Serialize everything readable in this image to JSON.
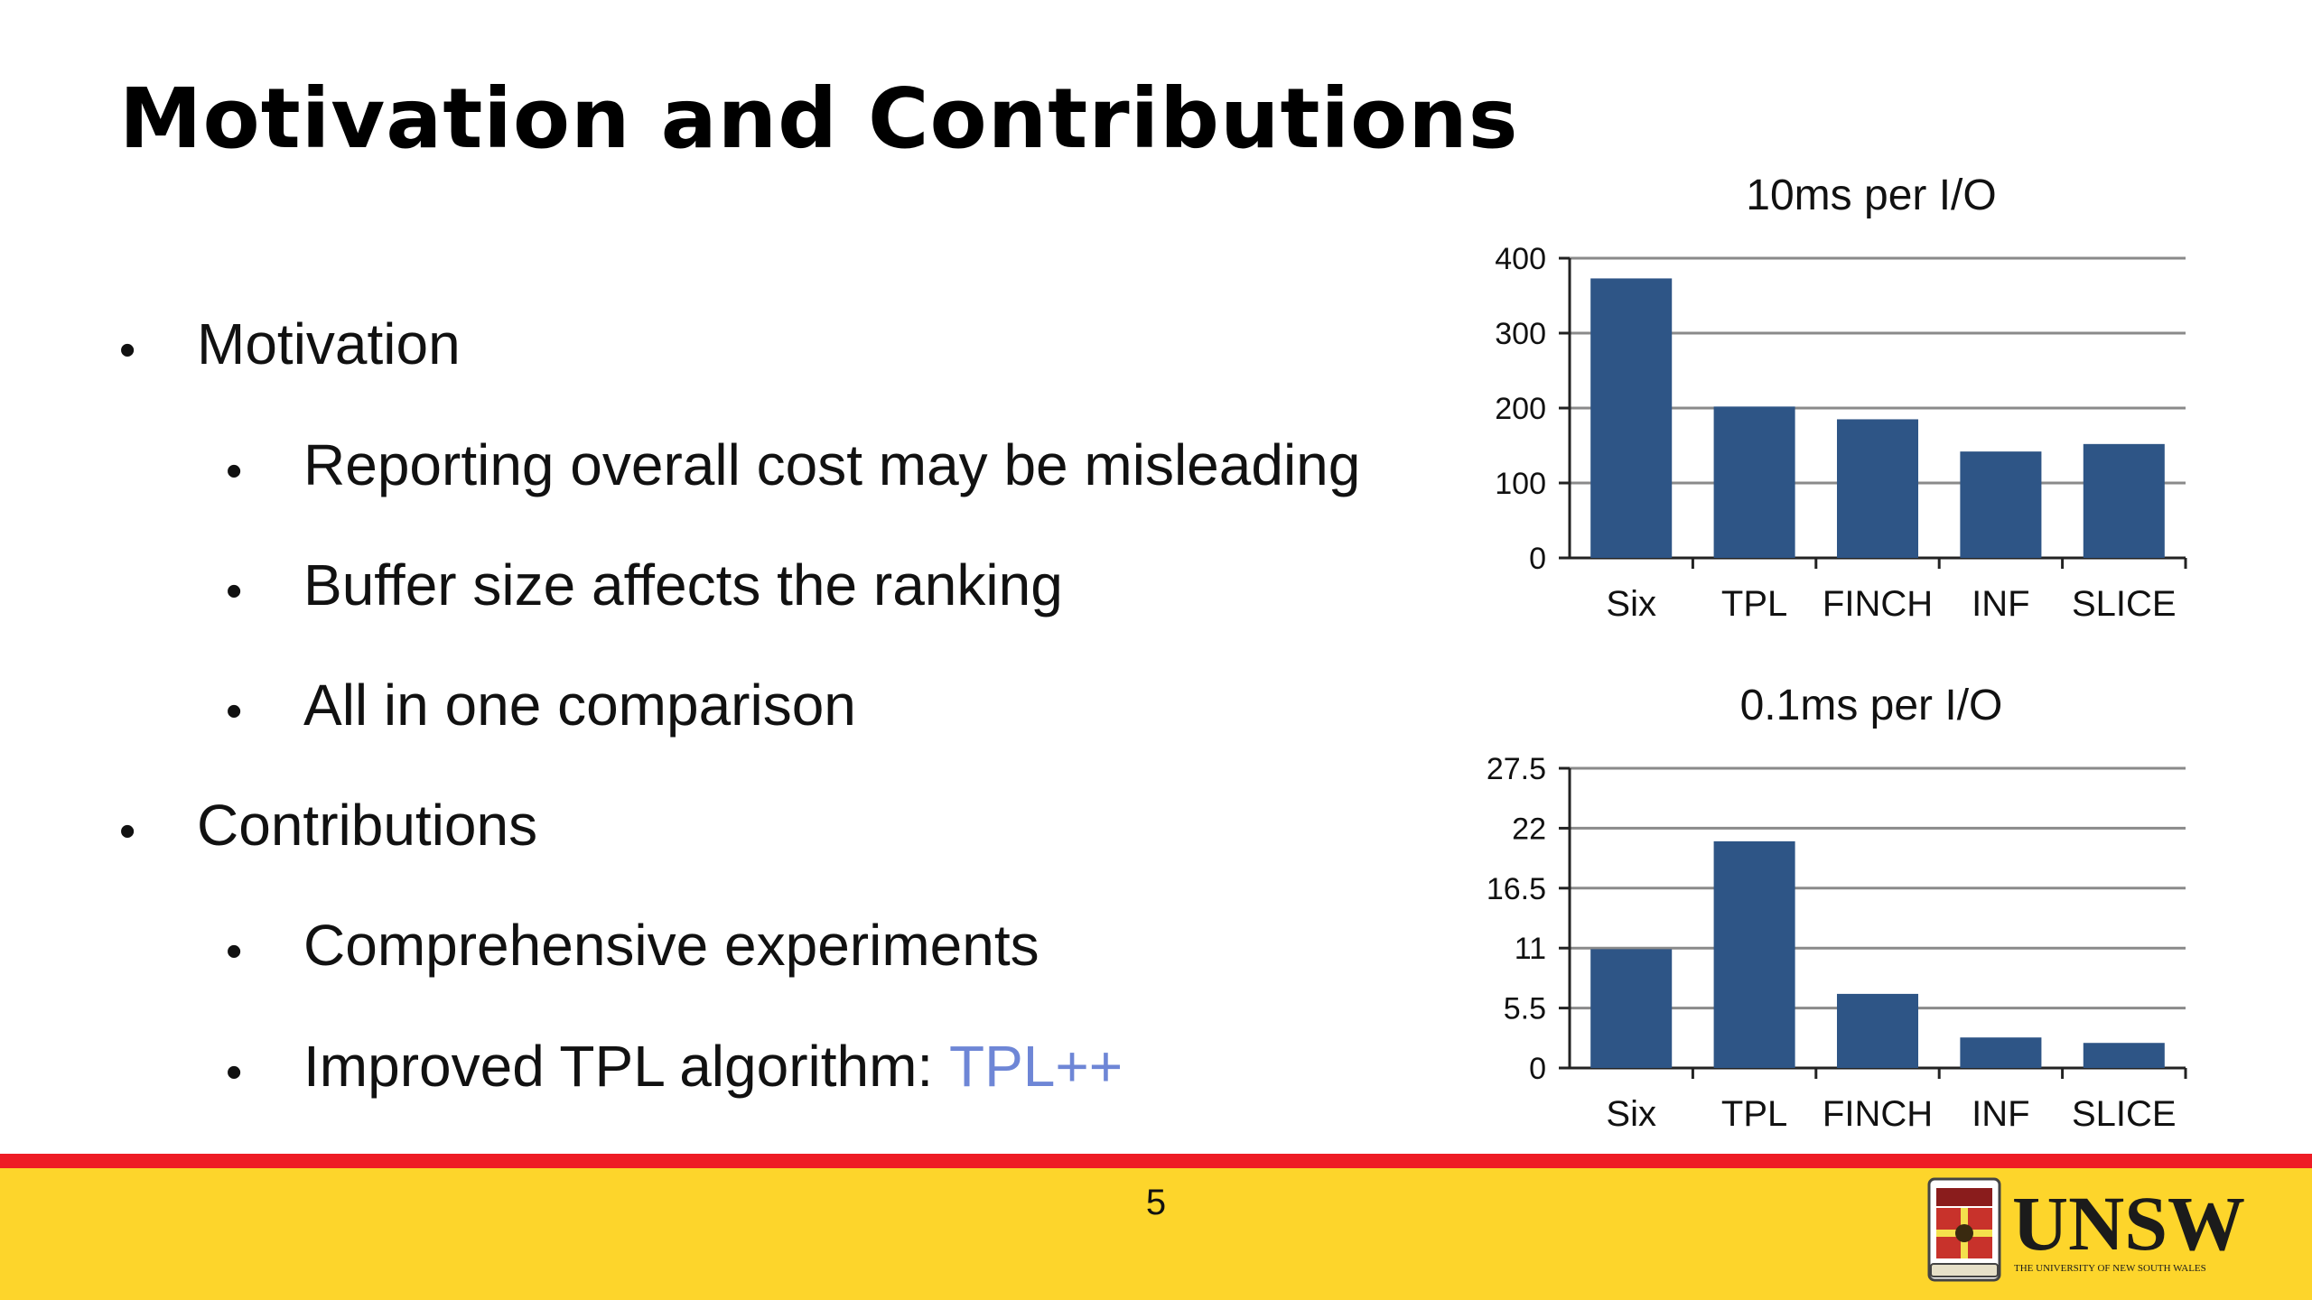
{
  "slide": {
    "title": "Motivation and Contributions",
    "page_number": "5"
  },
  "bullets": [
    {
      "level": 1,
      "text": "Motivation"
    },
    {
      "level": 2,
      "text": "Reporting overall cost may be misleading"
    },
    {
      "level": 2,
      "text": "Buffer size affects the ranking"
    },
    {
      "level": 2,
      "text": "All in one comparison"
    },
    {
      "level": 1,
      "text": "Contributions"
    },
    {
      "level": 2,
      "text": "Comprehensive experiments"
    },
    {
      "level": 2,
      "text": "Improved TPL algorithm: ",
      "highlight": "TPL++"
    }
  ],
  "bullet_glyph": "•",
  "colors": {
    "bar": "#2e5586",
    "highlight": "#6e86d6",
    "footer_red": "#ee1c25",
    "footer_yellow": "#fdd52b"
  },
  "logo": {
    "name": "UNSW",
    "tagline": "THE UNIVERSITY OF NEW SOUTH WALES",
    "icon": "unsw-crest-icon"
  },
  "chart_data": [
    {
      "type": "bar",
      "title": "10ms per I/O",
      "categories": [
        "Six",
        "TPL",
        "FINCH",
        "INF",
        "SLICE"
      ],
      "values": [
        373,
        202,
        185,
        142,
        152
      ],
      "ylim": [
        0,
        400
      ],
      "yticks": [
        "0",
        "100",
        "200",
        "300",
        "400"
      ],
      "grid": true
    },
    {
      "type": "bar",
      "title": "0.1ms per I/O",
      "categories": [
        "Six",
        "TPL",
        "FINCH",
        "INF",
        "SLICE"
      ],
      "values": [
        10.9,
        20.8,
        6.8,
        2.8,
        2.3
      ],
      "ylim": [
        0,
        27.5
      ],
      "yticks": [
        "0",
        "5.5",
        "11",
        "16.5",
        "22",
        "27.5"
      ],
      "grid": true
    }
  ]
}
